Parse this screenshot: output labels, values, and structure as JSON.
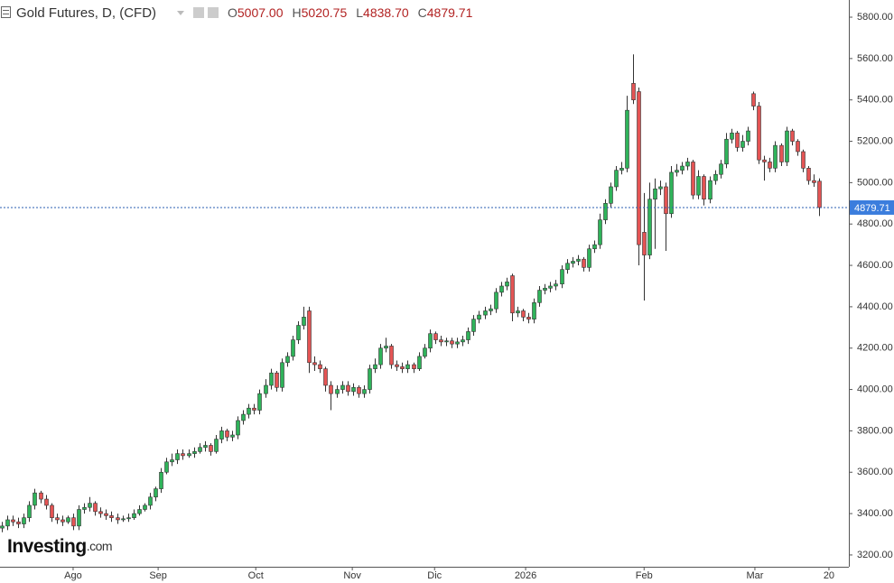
{
  "chart_data": {
    "type": "candlestick",
    "title": "Gold Futures, D, (CFD)",
    "ohlc_legend": [
      {
        "label": "O",
        "value": "5007.00"
      },
      {
        "label": "H",
        "value": "5020.75"
      },
      {
        "label": "L",
        "value": "4838.70"
      },
      {
        "label": "C",
        "value": "4879.71"
      }
    ],
    "watermark": "Investing",
    "watermark_suffix": ".com",
    "up_color": "#2fb35a",
    "down_color": "#e45454",
    "ylim": [
      3143,
      5883
    ],
    "yticks": [
      {
        "value": 3200,
        "label": "3200.00"
      },
      {
        "value": 3400,
        "label": "3400.00"
      },
      {
        "value": 3600,
        "label": "3600.00"
      },
      {
        "value": 3800,
        "label": "3800.00"
      },
      {
        "value": 4000,
        "label": "4000.00"
      },
      {
        "value": 4200,
        "label": "4200.00"
      },
      {
        "value": 4400,
        "label": "4400.00"
      },
      {
        "value": 4600,
        "label": "4600.00"
      },
      {
        "value": 4800,
        "label": "4800.00"
      },
      {
        "value": 5000,
        "label": "5000.00"
      },
      {
        "value": 5200,
        "label": "5200.00"
      },
      {
        "value": 5400,
        "label": "5400.00"
      },
      {
        "value": 5600,
        "label": "5600.00"
      },
      {
        "value": 5800,
        "label": "5800.00"
      }
    ],
    "xlim": [
      -0.33,
      154.43
    ],
    "xticks": [
      {
        "value": 13,
        "label": "Ago"
      },
      {
        "value": 28.5,
        "label": "Sep"
      },
      {
        "value": 46.3,
        "label": "Oct"
      },
      {
        "value": 63.9,
        "label": "Nov"
      },
      {
        "value": 78.9,
        "label": "Dic"
      },
      {
        "value": 95.5,
        "label": "2026"
      },
      {
        "value": 117.1,
        "label": "Feb"
      },
      {
        "value": 137.3,
        "label": "Mar"
      },
      {
        "value": 150.8,
        "label": "20"
      }
    ],
    "open": [
      3330,
      3340,
      3370,
      3360,
      3350,
      3380,
      3440,
      3500,
      3470,
      3440,
      3380,
      3370,
      3360,
      3380,
      3340,
      3420,
      3430,
      3450,
      3410,
      3400,
      3390,
      3380,
      3370,
      3375,
      3380,
      3400,
      3420,
      3440,
      3480,
      3520,
      3600,
      3650,
      3660,
      3690,
      3680,
      3690,
      3700,
      3720,
      3730,
      3700,
      3760,
      3800,
      3770,
      3780,
      3850,
      3880,
      3910,
      3900,
      3980,
      4020,
      4080,
      4010,
      4130,
      4160,
      4240,
      4310,
      4380,
      4130,
      4120,
      4100,
      4020,
      3980,
      4000,
      4020,
      3990,
      4010,
      3980,
      4000,
      4100,
      4120,
      4200,
      4210,
      4120,
      4110,
      4100,
      4120,
      4100,
      4160,
      4200,
      4270,
      4240,
      4230,
      4235,
      4220,
      4230,
      4240,
      4280,
      4340,
      4360,
      4380,
      4390,
      4470,
      4500,
      4550,
      4370,
      4380,
      4350,
      4340,
      4420,
      4480,
      4490,
      4500,
      4510,
      4580,
      4610,
      4620,
      4630,
      4590,
      4680,
      4700,
      4820,
      4900,
      4980,
      5060,
      5070,
      5480,
      5440,
      4760,
      4650,
      4920,
      4970,
      4980,
      4850,
      5050,
      5060,
      5080,
      5100,
      4940,
      5030,
      4920,
      5010,
      5040,
      5090,
      5210,
      5240,
      5170,
      5200,
      5430,
      5370,
      5110,
      5100,
      5070,
      5180,
      5100,
      5250,
      5200,
      5150,
      5070,
      5010,
      5007
    ],
    "high": [
      3360,
      3390,
      3390,
      3380,
      3400,
      3460,
      3520,
      3510,
      3490,
      3450,
      3400,
      3390,
      3390,
      3400,
      3440,
      3450,
      3480,
      3460,
      3430,
      3420,
      3410,
      3400,
      3390,
      3400,
      3420,
      3440,
      3450,
      3500,
      3530,
      3620,
      3670,
      3690,
      3710,
      3710,
      3710,
      3720,
      3740,
      3750,
      3740,
      3780,
      3820,
      3810,
      3800,
      3870,
      3900,
      3930,
      3930,
      4000,
      4050,
      4100,
      4090,
      4150,
      4180,
      4260,
      4330,
      4400,
      4400,
      4160,
      4140,
      4110,
      4040,
      4020,
      4040,
      4040,
      4030,
      4020,
      4020,
      4120,
      4150,
      4220,
      4250,
      4220,
      4140,
      4130,
      4140,
      4130,
      4180,
      4220,
      4290,
      4280,
      4260,
      4250,
      4250,
      4250,
      4260,
      4300,
      4360,
      4380,
      4400,
      4410,
      4490,
      4520,
      4540,
      4560,
      4400,
      4390,
      4370,
      4440,
      4500,
      4510,
      4520,
      4530,
      4600,
      4630,
      4640,
      4650,
      4640,
      4700,
      4720,
      4850,
      4920,
      5000,
      5080,
      5100,
      5420,
      5620,
      5460,
      4950,
      5000,
      5020,
      5010,
      5000,
      5080,
      5090,
      5100,
      5120,
      5110,
      5060,
      5040,
      5030,
      5060,
      5110,
      5240,
      5260,
      5250,
      5230,
      5270,
      5440,
      5390,
      5130,
      5120,
      5200,
      5190,
      5270,
      5260,
      5210,
      5160,
      5080,
      5040,
      5020.75
    ],
    "low": [
      3310,
      3320,
      3340,
      3330,
      3330,
      3360,
      3420,
      3450,
      3420,
      3360,
      3350,
      3340,
      3350,
      3320,
      3320,
      3400,
      3410,
      3390,
      3380,
      3370,
      3360,
      3350,
      3360,
      3360,
      3370,
      3390,
      3410,
      3420,
      3460,
      3500,
      3590,
      3630,
      3640,
      3660,
      3670,
      3670,
      3690,
      3700,
      3680,
      3690,
      3740,
      3750,
      3750,
      3760,
      3830,
      3860,
      3880,
      3880,
      3960,
      4000,
      3990,
      3990,
      4110,
      4140,
      4220,
      4290,
      4080,
      4090,
      4080,
      3990,
      3900,
      3960,
      3980,
      3970,
      3970,
      3960,
      3960,
      3980,
      4080,
      4100,
      4180,
      4100,
      4090,
      4080,
      4080,
      4080,
      4090,
      4150,
      4180,
      4220,
      4210,
      4210,
      4200,
      4200,
      4210,
      4220,
      4260,
      4320,
      4340,
      4360,
      4370,
      4450,
      4480,
      4330,
      4350,
      4330,
      4320,
      4320,
      4400,
      4460,
      4470,
      4480,
      4490,
      4560,
      4590,
      4600,
      4570,
      4570,
      4660,
      4680,
      4800,
      4880,
      4960,
      5040,
      5050,
      5380,
      4600,
      4430,
      4630,
      4680,
      4940,
      4670,
      4830,
      5030,
      5040,
      5060,
      4920,
      4920,
      4890,
      4900,
      4990,
      5020,
      5070,
      5190,
      5150,
      5150,
      5180,
      5350,
      5090,
      5010,
      5050,
      5050,
      5080,
      5080,
      5180,
      5130,
      5050,
      4990,
      4980,
      4838.7
    ],
    "close": [
      3340,
      3370,
      3360,
      3350,
      3380,
      3440,
      3500,
      3470,
      3440,
      3380,
      3370,
      3360,
      3380,
      3340,
      3420,
      3430,
      3450,
      3410,
      3400,
      3390,
      3380,
      3370,
      3375,
      3380,
      3400,
      3420,
      3440,
      3480,
      3520,
      3600,
      3650,
      3660,
      3690,
      3680,
      3690,
      3700,
      3720,
      3730,
      3700,
      3760,
      3800,
      3770,
      3780,
      3850,
      3880,
      3910,
      3900,
      3980,
      4020,
      4080,
      4010,
      4130,
      4160,
      4240,
      4310,
      4350,
      4130,
      4120,
      4100,
      4020,
      3980,
      4000,
      4020,
      3990,
      4010,
      3980,
      4000,
      4100,
      4120,
      4200,
      4210,
      4120,
      4110,
      4100,
      4120,
      4100,
      4160,
      4200,
      4270,
      4240,
      4230,
      4235,
      4220,
      4230,
      4240,
      4280,
      4340,
      4360,
      4380,
      4390,
      4470,
      4500,
      4520,
      4370,
      4380,
      4350,
      4340,
      4420,
      4480,
      4490,
      4500,
      4510,
      4580,
      4610,
      4620,
      4630,
      4590,
      4680,
      4700,
      4820,
      4900,
      4980,
      5060,
      5070,
      5350,
      5400,
      4700,
      4650,
      4920,
      4970,
      4980,
      4850,
      5050,
      5060,
      5080,
      5100,
      4940,
      5030,
      4920,
      5010,
      5040,
      5090,
      5210,
      5240,
      5170,
      5200,
      5250,
      5370,
      5110,
      5100,
      5070,
      5180,
      5100,
      5250,
      5200,
      5150,
      5070,
      5010,
      5000,
      4879.71
    ]
  }
}
